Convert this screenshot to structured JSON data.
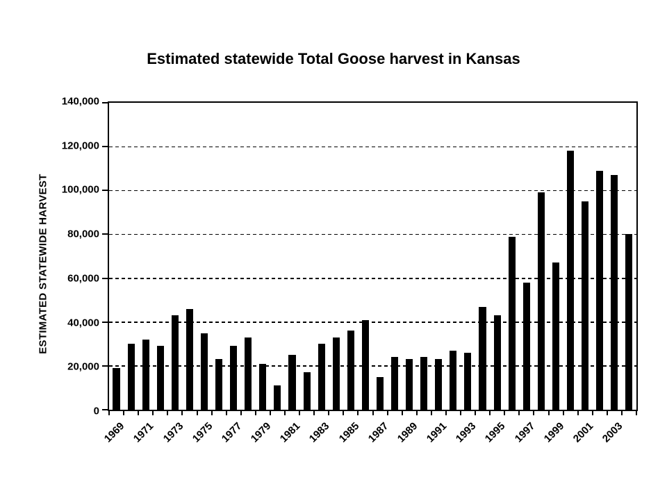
{
  "chart_data": {
    "type": "bar",
    "title": "Estimated statewide Total Goose harvest in Kansas",
    "ylabel": "ESTIMATED STATEWIDE HARVEST",
    "xlabel": "",
    "ylim": [
      0,
      140000
    ],
    "ytick_interval": 20000,
    "ytick_labels": [
      "0",
      "20,000",
      "40,000",
      "60,000",
      "80,000",
      "100,000",
      "120,000",
      "140,000"
    ],
    "grid": "horizontal-dashed",
    "legend": "none",
    "bar_color": "#000000",
    "background_color": "#ffffff",
    "xtick_label_every": 2,
    "categories": [
      "1969",
      "1970",
      "1971",
      "1972",
      "1973",
      "1974",
      "1975",
      "1976",
      "1977",
      "1978",
      "1979",
      "1980",
      "1981",
      "1982",
      "1983",
      "1984",
      "1985",
      "1986",
      "1987",
      "1988",
      "1989",
      "1990",
      "1991",
      "1992",
      "1993",
      "1994",
      "1995",
      "1996",
      "1997",
      "1998",
      "1999",
      "2000",
      "2001",
      "2002",
      "2003",
      "2004"
    ],
    "values": [
      19000,
      30000,
      32000,
      29000,
      43000,
      46000,
      35000,
      23000,
      29000,
      33000,
      21000,
      11000,
      25000,
      17000,
      30000,
      33000,
      36000,
      41000,
      15000,
      24000,
      23000,
      24000,
      23000,
      27000,
      26000,
      47000,
      43000,
      79000,
      58000,
      99000,
      67000,
      118000,
      95000,
      109000,
      107000,
      80000
    ]
  }
}
